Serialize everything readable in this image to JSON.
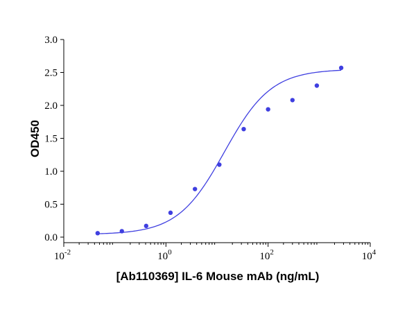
{
  "chart_data": {
    "type": "scatter",
    "title": "",
    "xlabel": "[Ab110369] IL-6 Mouse mAb (ng/mL)",
    "ylabel": "OD450",
    "x_scale": "log",
    "xlim": [
      0.01,
      10000
    ],
    "ylim": [
      0.0,
      3.0
    ],
    "x_ticks": [
      {
        "value": 0.01,
        "base": "10",
        "exp": "-2"
      },
      {
        "value": 1,
        "base": "10",
        "exp": "0"
      },
      {
        "value": 100,
        "base": "10",
        "exp": "2"
      },
      {
        "value": 10000,
        "base": "10",
        "exp": "4"
      }
    ],
    "y_ticks": [
      {
        "value": 0.0,
        "label": "0.0"
      },
      {
        "value": 0.5,
        "label": "0.5"
      },
      {
        "value": 1.0,
        "label": "1.0"
      },
      {
        "value": 1.5,
        "label": "1.5"
      },
      {
        "value": 2.0,
        "label": "2.0"
      },
      {
        "value": 2.5,
        "label": "2.5"
      },
      {
        "value": 3.0,
        "label": "3.0"
      }
    ],
    "grid": false,
    "colors": {
      "points": "#3f3fe0",
      "curve": "#3f3fe0",
      "axes": "#000000"
    },
    "series": [
      {
        "type": "scatter",
        "points": [
          {
            "x": 0.046,
            "y": 0.06
          },
          {
            "x": 0.137,
            "y": 0.09
          },
          {
            "x": 0.41,
            "y": 0.17
          },
          {
            "x": 1.23,
            "y": 0.37
          },
          {
            "x": 3.7,
            "y": 0.73
          },
          {
            "x": 11.1,
            "y": 1.1
          },
          {
            "x": 33.3,
            "y": 1.64
          },
          {
            "x": 100,
            "y": 1.94
          },
          {
            "x": 300,
            "y": 2.08
          },
          {
            "x": 900,
            "y": 2.3
          },
          {
            "x": 2700,
            "y": 2.57
          }
        ]
      },
      {
        "type": "line",
        "fit": "4PL",
        "params": {
          "bottom": 0.04,
          "top": 2.55,
          "ec50": 14.0,
          "hill": 0.95
        },
        "x_range": [
          0.046,
          2700
        ]
      }
    ]
  }
}
